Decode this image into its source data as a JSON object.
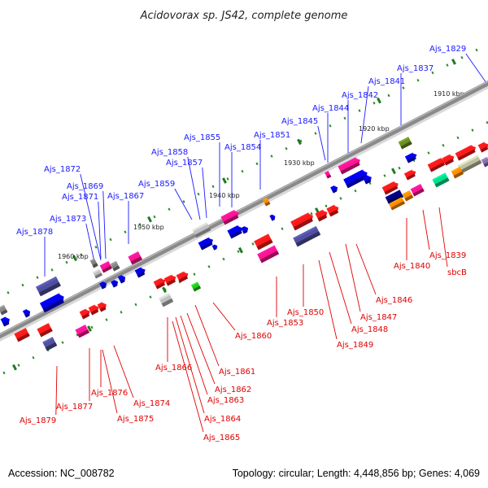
{
  "title": "Acidovorax sp. JS42, complete genome",
  "footer": {
    "accession": "Accession: NC_008782",
    "summary": "Topology: circular; Length: 4,448,856 bp; Genes: 4,069"
  },
  "colors": {
    "blue_label": "#1a1aff",
    "red_label": "#e00000",
    "backbone": "#888888",
    "tick": "#2a8a2a"
  },
  "scale_labels": [
    "1910 kbp",
    "1920 kbp",
    "1930 kbp",
    "1940 kbp",
    "1950 kbp",
    "1960 kbp"
  ],
  "upper_labels": [
    "Ajs_1829",
    "Ajs_1837",
    "Ajs_1841",
    "Ajs_1842",
    "Ajs_1844",
    "Ajs_1845",
    "Ajs_1851",
    "Ajs_1854",
    "Ajs_1855",
    "Ajs_1857",
    "Ajs_1858",
    "Ajs_1859",
    "Ajs_1867",
    "Ajs_1869",
    "Ajs_1871",
    "Ajs_1872",
    "Ajs_1873",
    "Ajs_1878"
  ],
  "lower_labels": [
    "Ajs_1839",
    "sbcB",
    "Ajs_1840",
    "Ajs_1846",
    "Ajs_1847",
    "Ajs_1848",
    "Ajs_1849",
    "Ajs_1850",
    "Ajs_1853",
    "Ajs_1860",
    "Ajs_1861",
    "Ajs_1862",
    "Ajs_1863",
    "Ajs_1864",
    "Ajs_1865",
    "Ajs_1866",
    "Ajs_1874",
    "Ajs_1875",
    "Ajs_1876",
    "Ajs_1877",
    "Ajs_1879"
  ]
}
